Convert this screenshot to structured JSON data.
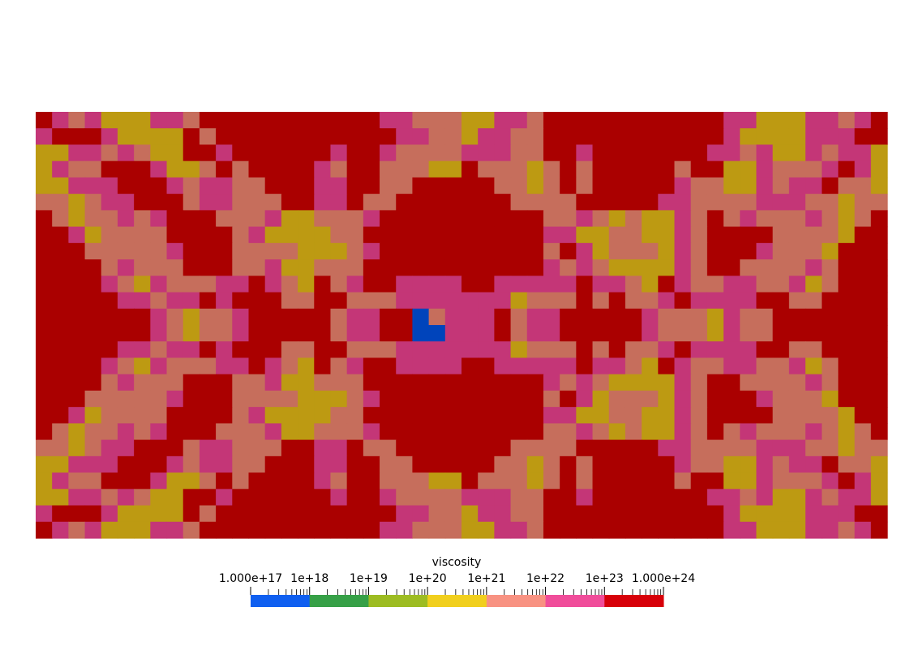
{
  "legend": {
    "title": "viscosity",
    "min_label": "1.000e+17",
    "max_label": "1.000e+24",
    "decade_labels": [
      "1e+18",
      "1e+19",
      "1e+20",
      "1e+21",
      "1e+22",
      "1e+23"
    ],
    "bins": [
      {
        "from": 17,
        "to": 18,
        "color": "#0f5ff0"
      },
      {
        "from": 18,
        "to": 19,
        "color": "#36a047"
      },
      {
        "from": 19,
        "to": 20,
        "color": "#9dbc22"
      },
      {
        "from": 20,
        "to": 21,
        "color": "#f1cf1d"
      },
      {
        "from": 21,
        "to": 22,
        "color": "#f89282"
      },
      {
        "from": 22,
        "to": 23,
        "color": "#f04d9a"
      },
      {
        "from": 23,
        "to": 24,
        "color": "#d70009"
      }
    ]
  },
  "field": {
    "cell_colors": [
      "#0044bb",
      "#bd9a12",
      "#c66e5c",
      "#c43677",
      "#aa0000"
    ],
    "rows": [
      "4323111332444444444443322211332444444444443311133234",
      "3444311114244444444444332213322444444444443111133344",
      "1133232114434444443443222233322443444444433231132331",
      "1322444311242444432442221142221242444442441132223431",
      "1133344432332244433442244444221242444443221132334221",
      "2212334442332224433422444444422224444433222233322122",
      "4212232344422231122234444444444223212113242322232124",
      "4431222244442311112244444444444331122113244442222144",
      "4442222234442222111234444444444243122213244432221444",
      "4444232224442231122244444444444323211113244222232444",
      "4444321322233432142344333344333334332143223322312444",
      "4444433233434442244222333333312224242234333344224444",
      "4444444321223444442334402333423344444322213224444444",
      "4444444321223444442334400333423344444322213224444444",
      "4444433233434442244222333333312224242234333344224444",
      "4444321322233432142344333344333334332143223322312444",
      "4444232224442231122244444444444323211113244222232444",
      "4442222234442222111234444444444243122213244432221444",
      "4431222244442311112244444444444331122113244442222144",
      "4212232344422231122234444444444223212113242322232124",
      "2212334442332224433422444444422224444433222233322122",
      "1133344432332244433442244444221242444443221132334221",
      "1322444311242444432442221142221242444442441132223431",
      "1133232114434444443443222233322443444444433231132331",
      "3444311114244444444444332213322444444444443111133344",
      "4323111332444444444443322211332444444444443311133234"
    ]
  }
}
